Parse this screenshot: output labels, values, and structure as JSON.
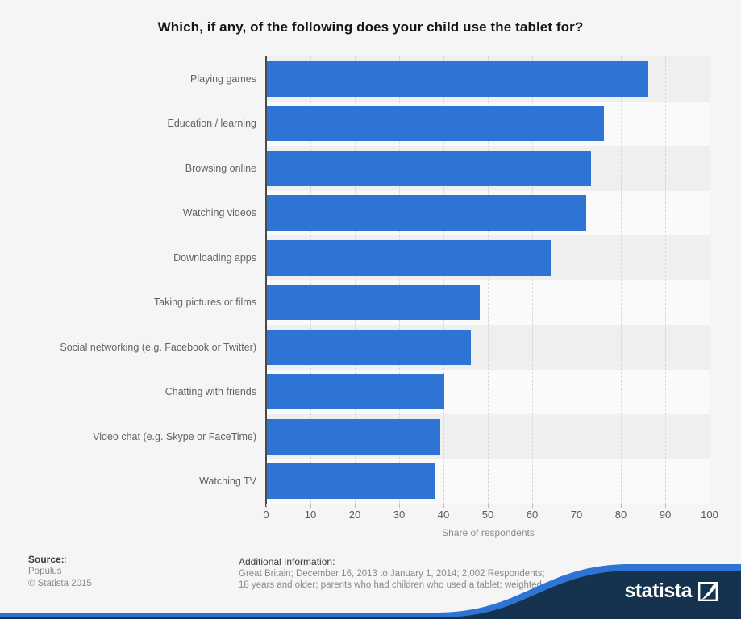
{
  "title": "Which, if any, of the following does your child use the tablet for?",
  "chart_data": {
    "type": "bar",
    "orientation": "horizontal",
    "title": "Which, if any, of the following does your child use the tablet for?",
    "categories": [
      "Playing games",
      "Education / learning",
      "Browsing online",
      "Watching videos",
      "Downloading apps",
      "Taking pictures or films",
      "Social networking (e.g. Facebook or Twitter)",
      "Chatting with friends",
      "Video chat (e.g. Skype or FaceTime)",
      "Watching TV"
    ],
    "values": [
      86,
      76,
      73,
      72,
      64,
      48,
      46,
      40,
      39,
      38
    ],
    "xlabel": "Share of respondents",
    "xlim": [
      0,
      100
    ],
    "xtick_step": 10,
    "grid": true,
    "legend": false,
    "bar_color": "#2d74d4",
    "row_band_colors": [
      "#efefef",
      "#fafafa"
    ]
  },
  "footer": {
    "source_label": "Source:",
    "source_suffix": ":",
    "source_lines": [
      "Populus",
      "© Statista 2015"
    ],
    "additional_label": "Additional Information:",
    "additional_lines": [
      "Great Britain; December 16, 2013 to January 1, 2014; 2,002 Respondents;",
      "18 years and older; parents who had children who used a tablet; weighted"
    ]
  },
  "brand": {
    "name": "statista",
    "navy": "#15324e",
    "blue": "#2d74d4"
  }
}
